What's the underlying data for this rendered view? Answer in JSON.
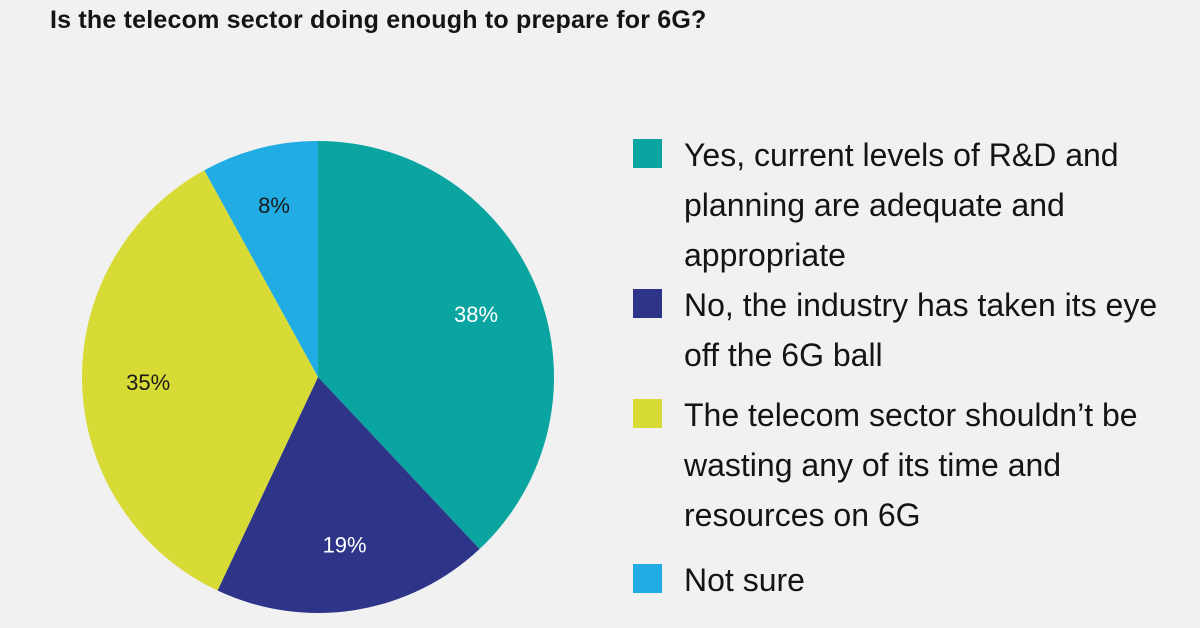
{
  "title": "Is the telecom sector doing enough to prepare for 6G?",
  "chart_data": {
    "type": "pie",
    "title": "Is the telecom sector doing enough to prepare for 6G?",
    "slices": [
      {
        "label": "Yes, current levels of R&D and planning are adequate and appropriate",
        "value": 38,
        "display": "38%",
        "color": "#0aa5a0",
        "label_color": "#ffffff"
      },
      {
        "label": "No, the industry has taken its eye off the 6G ball",
        "value": 19,
        "display": "19%",
        "color": "#2e3589",
        "label_color": "#ffffff"
      },
      {
        "label": "The telecom sector shouldn’t be wasting any of its time and resources on 6G",
        "value": 35,
        "display": "35%",
        "color": "#d8db35",
        "label_color": "#1a1a1a"
      },
      {
        "label": "Not sure",
        "value": 8,
        "display": "8%",
        "color": "#21ace4",
        "label_color": "#1a1a1a"
      }
    ],
    "start_angle_deg": 0,
    "direction": "clockwise",
    "legend_position": "right"
  }
}
